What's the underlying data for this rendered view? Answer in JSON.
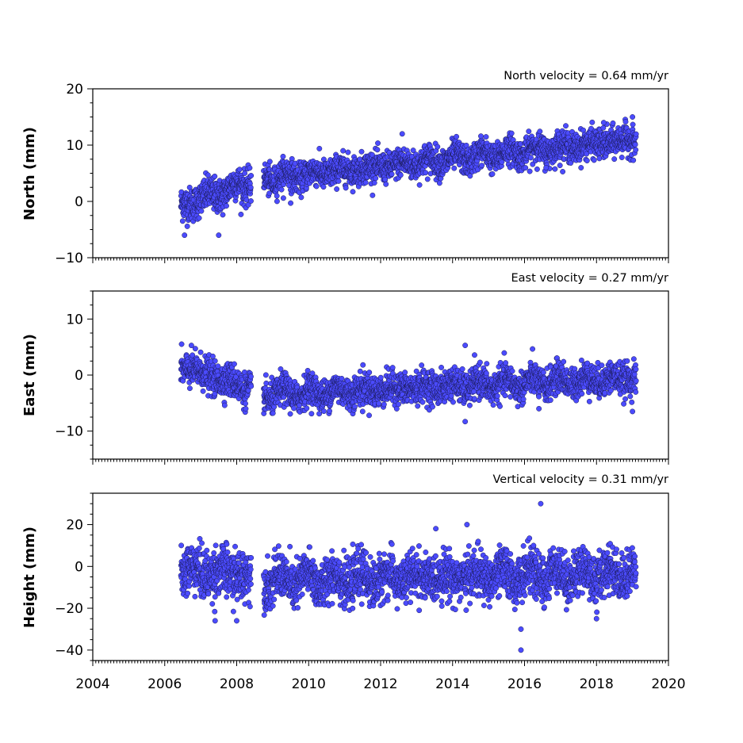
{
  "chart_data": [
    {
      "type": "scatter",
      "title": "North velocity = 0.64 mm/yr",
      "ylabel": "North (mm)",
      "xlim": [
        2004,
        2020
      ],
      "ylim": [
        -10,
        20
      ],
      "yticks": [
        -10,
        0,
        10,
        20
      ],
      "yticklabels": [
        "−10",
        "0",
        "10",
        "20"
      ],
      "color": "#4b4bff",
      "segments": [
        {
          "x_start": 2006.45,
          "x_end": 2008.4,
          "y_start": -0.8,
          "y_end": 3.5,
          "scatter": 1.5
        },
        {
          "x_start": 2008.75,
          "x_end": 2019.1,
          "y_start": 4.0,
          "y_end": 11.0,
          "scatter": 1.3
        }
      ],
      "outliers": [
        [
          2006.55,
          -6
        ],
        [
          2007.5,
          -6
        ],
        [
          2009.5,
          -0.3
        ],
        [
          2012.6,
          12
        ],
        [
          2019.0,
          15
        ],
        [
          2016.6,
          6
        ],
        [
          2018.2,
          14
        ]
      ]
    },
    {
      "type": "scatter",
      "title": "East velocity = 0.27 mm/yr",
      "ylabel": "East (mm)",
      "xlim": [
        2004,
        2020
      ],
      "ylim": [
        -15,
        15
      ],
      "yticks": [
        -10,
        0,
        10
      ],
      "yticklabels": [
        "−10",
        "0",
        "10"
      ],
      "color": "#4b4bff",
      "segments": [
        {
          "x_start": 2006.45,
          "x_end": 2008.4,
          "y_start": 1.5,
          "y_end": -2.5,
          "scatter": 1.5
        },
        {
          "x_start": 2008.75,
          "x_end": 2019.1,
          "y_start": -3.5,
          "y_end": -0.5,
          "scatter": 1.4
        }
      ],
      "outliers": [
        [
          2014.35,
          5.3
        ],
        [
          2014.35,
          -8.3
        ],
        [
          2016.4,
          -6
        ],
        [
          2019.0,
          -6.5
        ],
        [
          2011.5,
          -6.5
        ]
      ]
    },
    {
      "type": "scatter",
      "title": "Vertical velocity = 0.31 mm/yr",
      "ylabel": "Height (mm)",
      "xlim": [
        2004,
        2020
      ],
      "xticks": [
        2004,
        2006,
        2008,
        2010,
        2012,
        2014,
        2016,
        2018,
        2020
      ],
      "xticklabels": [
        "2004",
        "2006",
        "2008",
        "2010",
        "2012",
        "2014",
        "2016",
        "2018",
        "2020"
      ],
      "ylim": [
        -45,
        35
      ],
      "yticks": [
        -40,
        -20,
        0,
        20
      ],
      "yticklabels": [
        "−40",
        "−20",
        "0",
        "20"
      ],
      "color": "#4b4bff",
      "segments": [
        {
          "x_start": 2006.45,
          "x_end": 2008.4,
          "y_start": -2.0,
          "y_end": -4.0,
          "scatter": 6.0
        },
        {
          "x_start": 2008.75,
          "x_end": 2019.1,
          "y_start": -7.0,
          "y_end": -3.0,
          "scatter": 5.5
        }
      ],
      "outliers": [
        [
          2015.9,
          -30
        ],
        [
          2015.9,
          -40
        ],
        [
          2016.45,
          30
        ],
        [
          2014.4,
          20
        ],
        [
          2007.4,
          -26
        ],
        [
          2008.0,
          -26
        ],
        [
          2018.0,
          -25
        ]
      ]
    }
  ]
}
